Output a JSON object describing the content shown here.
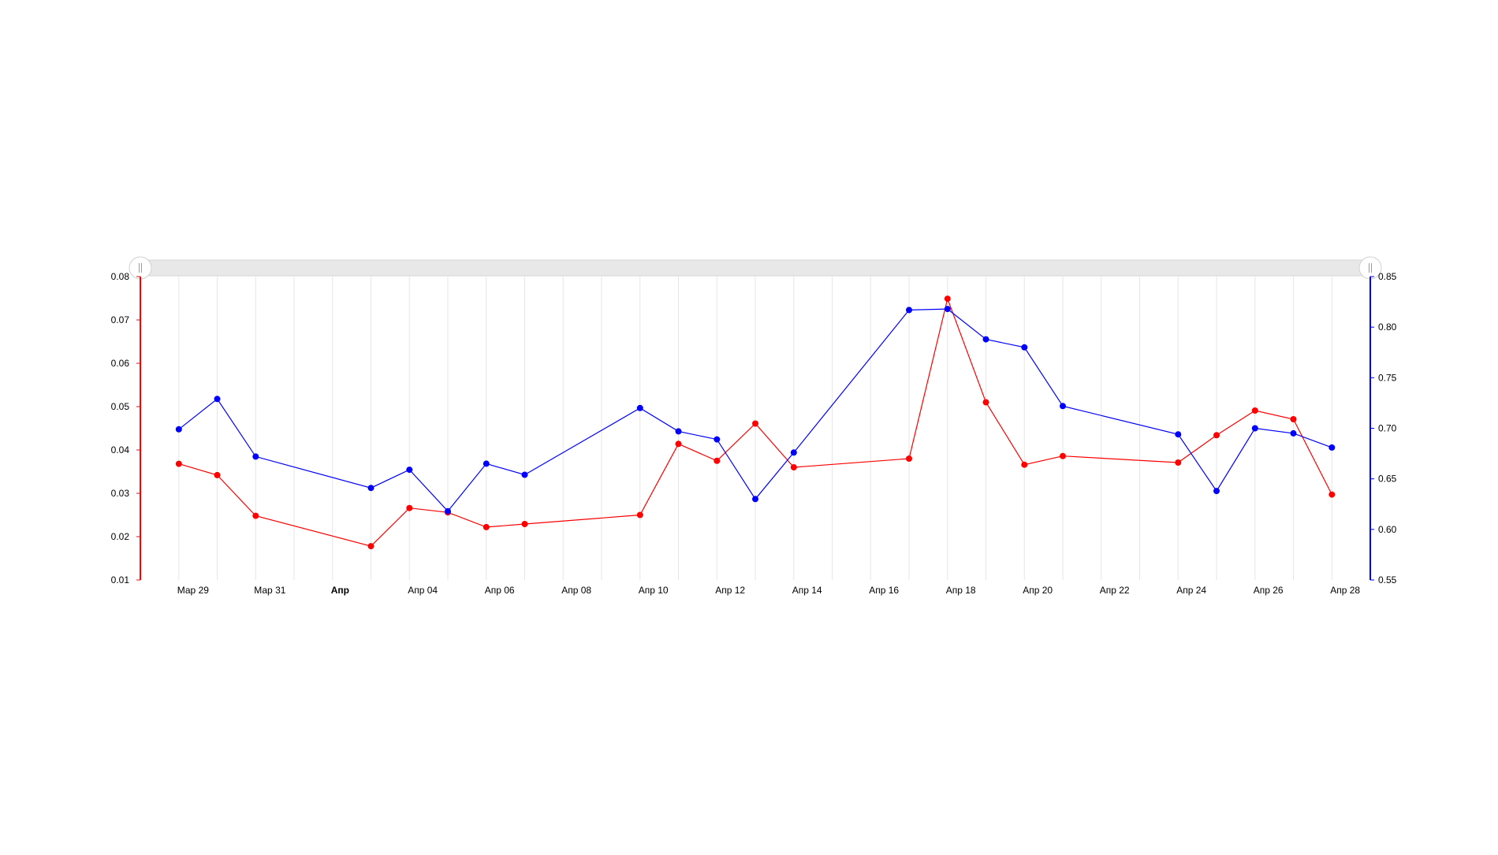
{
  "chart_data": {
    "type": "line",
    "x": [
      "2015-03-29",
      "2015-03-30",
      "2015-03-31",
      "2015-04-03",
      "2015-04-04",
      "2015-04-05",
      "2015-04-06",
      "2015-04-07",
      "2015-04-10",
      "2015-04-11",
      "2015-04-12",
      "2015-04-13",
      "2015-04-14",
      "2015-04-17",
      "2015-04-18",
      "2015-04-19",
      "2015-04-20",
      "2015-04-21",
      "2015-04-24",
      "2015-04-25",
      "2015-04-26",
      "2015-04-27",
      "2015-04-28"
    ],
    "x_ticks": [
      {
        "date": "2015-03-29",
        "label": "Мар 29",
        "bold": false
      },
      {
        "date": "2015-03-31",
        "label": "Мар 31",
        "bold": false
      },
      {
        "date": "2015-04-02",
        "label": "Апр",
        "bold": true
      },
      {
        "date": "2015-04-04",
        "label": "Апр 04",
        "bold": false
      },
      {
        "date": "2015-04-06",
        "label": "Апр 06",
        "bold": false
      },
      {
        "date": "2015-04-08",
        "label": "Апр 08",
        "bold": false
      },
      {
        "date": "2015-04-10",
        "label": "Апр 10",
        "bold": false
      },
      {
        "date": "2015-04-12",
        "label": "Апр 12",
        "bold": false
      },
      {
        "date": "2015-04-14",
        "label": "Апр 14",
        "bold": false
      },
      {
        "date": "2015-04-16",
        "label": "Апр 16",
        "bold": false
      },
      {
        "date": "2015-04-18",
        "label": "Апр 18",
        "bold": false
      },
      {
        "date": "2015-04-20",
        "label": "Апр 20",
        "bold": false
      },
      {
        "date": "2015-04-22",
        "label": "Апр 22",
        "bold": false
      },
      {
        "date": "2015-04-24",
        "label": "Апр 24",
        "bold": false
      },
      {
        "date": "2015-04-26",
        "label": "Апр 26",
        "bold": false
      },
      {
        "date": "2015-04-28",
        "label": "Апр 28",
        "bold": false
      }
    ],
    "x_range": [
      "2015-03-28",
      "2015-04-29"
    ],
    "grid": true,
    "scrollbar": true,
    "series": [
      {
        "axis": "left",
        "color": "#ff0000",
        "values": [
          0.0368,
          0.0342,
          0.0248,
          0.0178,
          0.0266,
          0.0256,
          0.0222,
          0.0229,
          0.025,
          0.0414,
          0.0375,
          0.0461,
          0.036,
          0.038,
          0.0749,
          0.051,
          0.0366,
          0.0386,
          0.0371,
          0.0434,
          0.0491,
          0.0471,
          0.0297
        ]
      },
      {
        "axis": "right",
        "color": "#0000ff",
        "values": [
          0.699,
          0.729,
          0.672,
          0.641,
          0.659,
          0.618,
          0.665,
          0.654,
          0.72,
          0.697,
          0.689,
          0.63,
          0.676,
          0.817,
          0.818,
          0.788,
          0.78,
          0.722,
          0.694,
          0.638,
          0.7,
          0.695,
          0.681
        ]
      }
    ],
    "y_left": {
      "min": 0.01,
      "max": 0.08,
      "ticks": [
        "0.01",
        "0.02",
        "0.03",
        "0.04",
        "0.05",
        "0.06",
        "0.07",
        "0.08"
      ],
      "color": "#ff0000"
    },
    "y_right": {
      "min": 0.55,
      "max": 0.85,
      "ticks": [
        "0.55",
        "0.60",
        "0.65",
        "0.70",
        "0.75",
        "0.80",
        "0.85"
      ],
      "color": "#0000ff"
    }
  }
}
